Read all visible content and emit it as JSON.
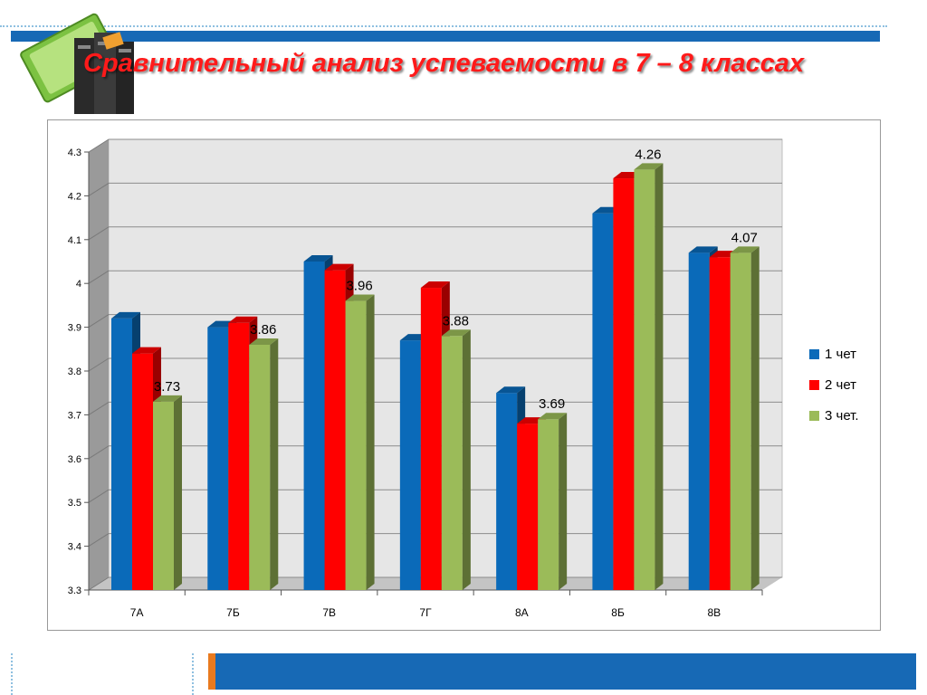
{
  "page": {
    "title": "Сравнительный анализ успеваемости в 7 – 8 классах",
    "logo_icon": "books-icon"
  },
  "colors": {
    "accent_blue": "#1769b5",
    "title_red": "#ff1a1a",
    "accent_orange": "#e97a1f"
  },
  "chart_data": {
    "type": "bar",
    "categories": [
      "7А",
      "7Б",
      "7В",
      "7Г",
      "8А",
      "8Б",
      "8В"
    ],
    "series": [
      {
        "name": "1 чет",
        "color": "#0a6ab9",
        "values": [
          3.92,
          3.9,
          4.05,
          3.87,
          3.75,
          4.16,
          4.07
        ]
      },
      {
        "name": "2 чет",
        "color": "#ff0000",
        "values": [
          3.84,
          3.91,
          4.03,
          3.99,
          3.68,
          4.24,
          4.06
        ]
      },
      {
        "name": "3 чет.",
        "color": "#9bbb59",
        "values": [
          3.73,
          3.86,
          3.96,
          3.88,
          3.69,
          4.26,
          4.07
        ]
      }
    ],
    "data_labels": {
      "series": 2,
      "texts": [
        "3.73",
        "3.86",
        "3.96",
        "3.88",
        "3.69",
        "4.26",
        "4.07"
      ]
    },
    "ylim": [
      3.3,
      4.3
    ],
    "yticks": [
      3.3,
      3.4,
      3.5,
      3.6,
      3.7,
      3.8,
      3.9,
      4,
      4.1,
      4.2,
      4.3
    ],
    "ytick_labels": [
      "3.3",
      "3.4",
      "3.5",
      "3.6",
      "3.7",
      "3.8",
      "3.9",
      "4",
      "4.1",
      "4.2",
      "4.3"
    ],
    "grid": true,
    "legend_position": "right",
    "title": "",
    "xlabel": "",
    "ylabel": ""
  }
}
